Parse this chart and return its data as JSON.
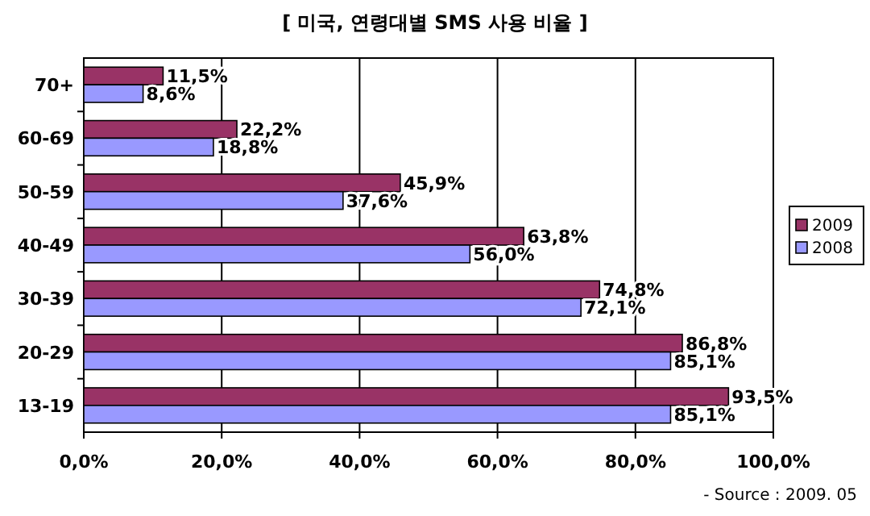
{
  "chart_data": {
    "type": "bar",
    "orientation": "horizontal",
    "title": "[ 미국, 연령대별 SMS 사용 비율 ]",
    "categories": [
      "70+",
      "60-69",
      "50-59",
      "40-49",
      "30-39",
      "20-29",
      "13-19"
    ],
    "series": [
      {
        "name": "2009",
        "color": "#993366",
        "values": [
          11.5,
          22.2,
          45.9,
          63.8,
          74.8,
          86.8,
          93.5
        ],
        "value_labels": [
          "11,5%",
          "22,2%",
          "45,9%",
          "63,8%",
          "74,8%",
          "86,8%",
          "93,5%"
        ]
      },
      {
        "name": "2008",
        "color": "#9999ff",
        "values": [
          8.6,
          18.8,
          37.6,
          56.0,
          72.1,
          85.1,
          85.1
        ],
        "value_labels": [
          "8,6%",
          "18,8%",
          "37,6%",
          "56,0%",
          "72,1%",
          "85,1%",
          "85,1%"
        ]
      }
    ],
    "xlim": [
      0,
      100
    ],
    "xticks": [
      {
        "value": 0,
        "label": "0,0%"
      },
      {
        "value": 20,
        "label": "20,0%"
      },
      {
        "value": 40,
        "label": "40,0%"
      },
      {
        "value": 60,
        "label": "60,0%"
      },
      {
        "value": 80,
        "label": "80,0%"
      },
      {
        "value": 100,
        "label": "100,0%"
      }
    ],
    "grid": "x",
    "legend": "right",
    "annotations": [
      "- Source : 2009. 05"
    ]
  }
}
